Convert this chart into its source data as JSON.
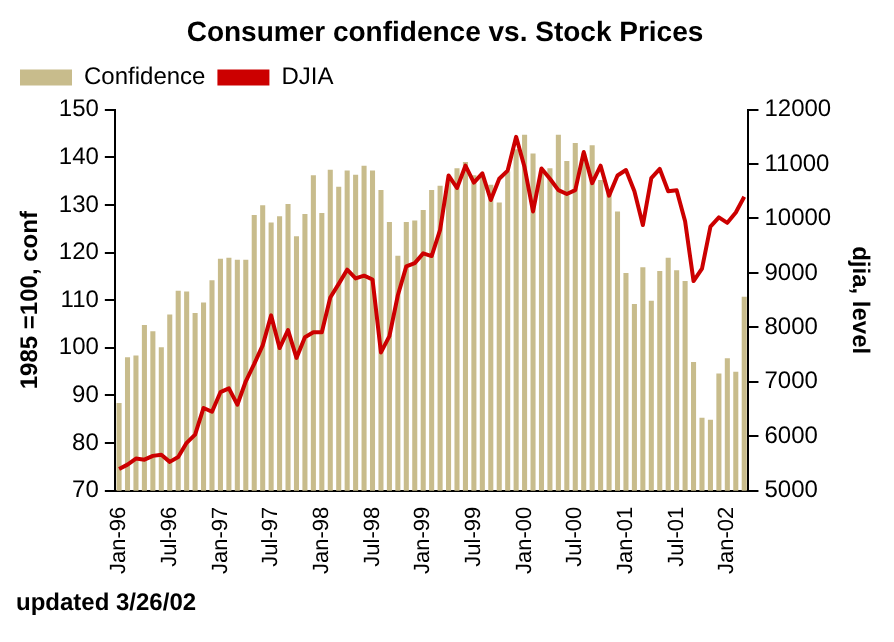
{
  "chart_data": {
    "type": "bar",
    "title": "Consumer confidence vs. Stock Prices",
    "ylabel": "1985 =100, conf",
    "y2label": "djia, level",
    "categories": [
      "Jan-96",
      null,
      null,
      null,
      null,
      null,
      "Jul-96",
      null,
      null,
      null,
      null,
      null,
      "Jan-97",
      null,
      null,
      null,
      null,
      null,
      "Jul-97",
      null,
      null,
      null,
      null,
      null,
      "Jan-98",
      null,
      null,
      null,
      null,
      null,
      "Jul-98",
      null,
      null,
      null,
      null,
      null,
      "Jan-99",
      null,
      null,
      null,
      null,
      null,
      "Jul-99",
      null,
      null,
      null,
      null,
      null,
      "Jan-00",
      null,
      null,
      null,
      null,
      null,
      "Jul-00",
      null,
      null,
      null,
      null,
      null,
      "Jan-01",
      null,
      null,
      null,
      null,
      null,
      "Jul-01",
      null,
      null,
      null,
      null,
      null,
      "Jan-02",
      null,
      null
    ],
    "series": [
      {
        "name": "Confidence",
        "color": "#c8bc8c",
        "values": [
          88.4,
          98.0,
          98.4,
          104.8,
          103.5,
          100.1,
          107.0,
          112.0,
          111.8,
          107.3,
          109.5,
          114.2,
          118.7,
          118.9,
          118.5,
          118.5,
          127.9,
          129.9,
          126.3,
          127.6,
          130.2,
          123.4,
          128.1,
          136.2,
          128.3,
          137.4,
          133.8,
          137.2,
          136.3,
          138.2,
          137.2,
          133.1,
          126.4,
          119.3,
          126.4,
          126.7,
          128.9,
          133.1,
          134.0,
          135.5,
          137.7,
          139.0,
          136.2,
          136.0,
          134.2,
          130.5,
          137.0,
          141.7,
          144.7,
          140.8,
          137.1,
          137.7,
          144.7,
          139.2,
          143.0,
          140.8,
          142.5,
          135.2,
          132.6,
          128.6,
          115.7,
          109.2,
          116.9,
          109.9,
          116.1,
          118.9,
          116.3,
          114.0,
          97.0,
          85.3,
          84.9,
          94.6,
          97.8,
          95.0,
          110.7
        ]
      },
      {
        "name": "DJIA",
        "type": "line",
        "axis": "y2",
        "color": "#cc0000",
        "values": [
          5400,
          5480,
          5590,
          5570,
          5640,
          5660,
          5530,
          5620,
          5880,
          6030,
          6520,
          6450,
          6810,
          6880,
          6580,
          7010,
          7330,
          7670,
          8220,
          7620,
          7950,
          7440,
          7820,
          7910,
          7910,
          8550,
          8800,
          9060,
          8900,
          8950,
          8880,
          7540,
          7840,
          8590,
          9120,
          9180,
          9360,
          9310,
          9790,
          10790,
          10560,
          10970,
          10660,
          10830,
          10340,
          10730,
          10880,
          11500,
          10940,
          10130,
          10920,
          10730,
          10520,
          10450,
          10520,
          11220,
          10650,
          10970,
          10420,
          10790,
          10890,
          10500,
          9880,
          10740,
          10910,
          10500,
          10520,
          9950,
          8850,
          9080,
          9850,
          10020,
          9920,
          10110,
          10400
        ]
      }
    ],
    "ylim": [
      70,
      150
    ],
    "yticks": [
      70,
      80,
      90,
      100,
      110,
      120,
      130,
      140,
      150
    ],
    "y2lim": [
      5000,
      12000
    ],
    "y2ticks": [
      5000,
      6000,
      7000,
      8000,
      9000,
      10000,
      11000,
      12000
    ],
    "grid": false,
    "legend": "top left",
    "marker": "none",
    "line_style": "solid",
    "annotations": [
      "updated 3/26/02"
    ]
  }
}
